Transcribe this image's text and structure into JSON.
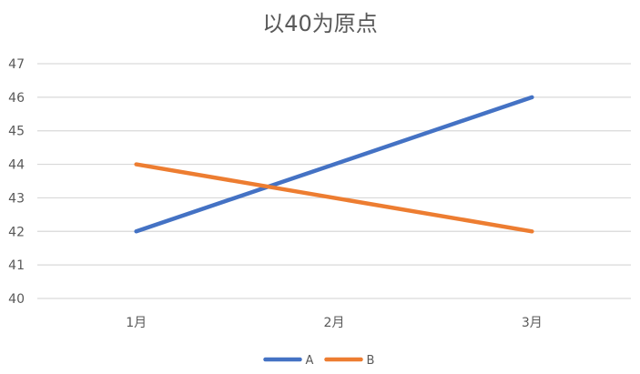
{
  "chart_data": {
    "type": "line",
    "title": "以40为原点",
    "xlabel": "",
    "ylabel": "",
    "categories": [
      "1月",
      "2月",
      "3月"
    ],
    "series": [
      {
        "name": "A",
        "values": [
          42,
          44,
          46
        ],
        "color": "#4472C4"
      },
      {
        "name": "B",
        "values": [
          44,
          43,
          42
        ],
        "color": "#ED7D31"
      }
    ],
    "ylim": [
      40,
      47
    ],
    "yticks": [
      40,
      41,
      42,
      43,
      44,
      45,
      46,
      47
    ],
    "grid": true,
    "legend_position": "bottom",
    "gridline_color": "#D9D9D9",
    "text_color": "#595959"
  }
}
